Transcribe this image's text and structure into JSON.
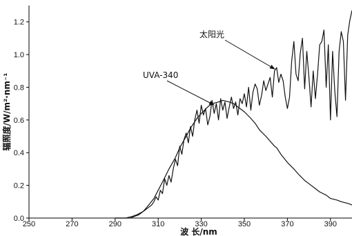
{
  "chart_data": {
    "type": "line",
    "xlabel": "波 长/nm",
    "ylabel": "辐照度/W/m²·nm⁻¹",
    "xlim": [
      250,
      400
    ],
    "ylim": [
      0,
      1.3
    ],
    "xticks": [
      250,
      270,
      290,
      310,
      330,
      350,
      370,
      390
    ],
    "yticks": [
      0.0,
      0.2,
      0.4,
      0.6,
      0.8,
      1.0,
      1.2
    ],
    "grid": false,
    "annotations": [
      "UVA-340",
      "太阳光"
    ],
    "series": [
      {
        "name": "UVA-340",
        "x": [
          290,
          295,
          298,
          300,
          303,
          305,
          308,
          310,
          312,
          315,
          318,
          320,
          323,
          325,
          328,
          330,
          333,
          335,
          338,
          340,
          343,
          345,
          347,
          350,
          353,
          355,
          357,
          360,
          362,
          364,
          365,
          367,
          370,
          373,
          375,
          378,
          380,
          383,
          385,
          388,
          390,
          393,
          395,
          398,
          400
        ],
        "y": [
          0.0,
          0.0,
          0.01,
          0.02,
          0.04,
          0.07,
          0.12,
          0.17,
          0.22,
          0.3,
          0.37,
          0.43,
          0.5,
          0.55,
          0.61,
          0.64,
          0.68,
          0.7,
          0.71,
          0.72,
          0.71,
          0.7,
          0.68,
          0.65,
          0.61,
          0.58,
          0.54,
          0.5,
          0.47,
          0.44,
          0.43,
          0.39,
          0.34,
          0.3,
          0.27,
          0.23,
          0.21,
          0.18,
          0.16,
          0.14,
          0.12,
          0.11,
          0.1,
          0.09,
          0.08
        ]
      },
      {
        "name": "太阳光",
        "x": [
          290,
          295,
          297,
          299,
          301,
          303,
          305,
          307,
          308,
          309,
          310,
          311,
          312,
          313,
          314,
          315,
          316,
          317,
          318,
          319,
          320,
          321,
          322,
          323,
          324,
          325,
          326,
          327,
          328,
          329,
          330,
          331,
          332,
          333,
          334,
          335,
          336,
          337,
          338,
          339,
          340,
          341,
          342,
          343,
          344,
          345,
          346,
          347,
          348,
          349,
          350,
          351,
          352,
          353,
          354,
          355,
          356,
          357,
          358,
          359,
          360,
          361,
          362,
          363,
          364,
          365,
          366,
          367,
          368,
          369,
          370,
          371,
          372,
          373,
          374,
          375,
          376,
          377,
          378,
          379,
          380,
          381,
          382,
          383,
          384,
          385,
          386,
          387,
          388,
          389,
          390,
          391,
          392,
          393,
          394,
          395,
          396,
          397,
          398,
          399,
          400
        ],
        "y": [
          0.0,
          0.0,
          0.0,
          0.01,
          0.02,
          0.04,
          0.06,
          0.08,
          0.1,
          0.13,
          0.11,
          0.17,
          0.15,
          0.24,
          0.2,
          0.26,
          0.22,
          0.3,
          0.36,
          0.32,
          0.44,
          0.39,
          0.48,
          0.52,
          0.46,
          0.56,
          0.5,
          0.6,
          0.66,
          0.58,
          0.69,
          0.63,
          0.67,
          0.57,
          0.62,
          0.72,
          0.64,
          0.7,
          0.6,
          0.73,
          0.66,
          0.71,
          0.61,
          0.68,
          0.74,
          0.67,
          0.71,
          0.63,
          0.73,
          0.7,
          0.76,
          0.68,
          0.8,
          0.66,
          0.77,
          0.82,
          0.79,
          0.69,
          0.75,
          0.84,
          0.78,
          0.82,
          0.86,
          0.74,
          0.9,
          0.92,
          0.83,
          0.88,
          0.84,
          0.74,
          0.67,
          0.74,
          0.96,
          1.08,
          0.88,
          0.84,
          1.01,
          1.1,
          0.79,
          1.02,
          0.86,
          0.68,
          0.9,
          0.73,
          0.88,
          1.06,
          1.08,
          1.15,
          0.8,
          1.06,
          0.6,
          1.02,
          0.78,
          0.62,
          1.02,
          1.14,
          1.08,
          0.72,
          1.12,
          1.21,
          1.27
        ]
      }
    ]
  }
}
